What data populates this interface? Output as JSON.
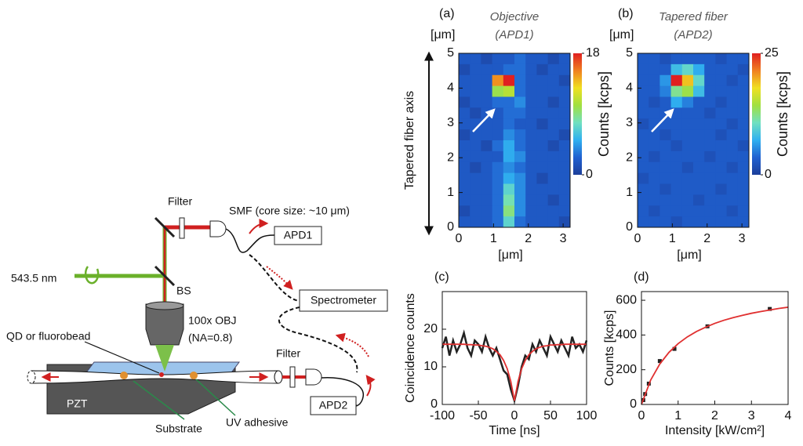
{
  "setup": {
    "laser": "543.5 nm",
    "bs": "BS",
    "filter_top": "Filter",
    "smf": "SMF (core size: ~10 μm)",
    "apd1": "APD1",
    "spectrometer": "Spectrometer",
    "objective": "100x OBJ",
    "na": "(NA=0.8)",
    "emitter": "QD or fluorobead",
    "filter_bottom": "Filter",
    "apd2": "APD2",
    "pzt": "PZT",
    "substrate": "Substrate",
    "adhesive": "UV adhesive"
  },
  "chart_data": [
    {
      "type": "heatmap",
      "label": "(a)",
      "title": [
        "Objective",
        "(APD1)"
      ],
      "yunit": "[μm]",
      "xlabel": "[μm]",
      "ylabel": "Tapered fiber axis",
      "clabel": "Counts [kcps]",
      "xlim": [
        0,
        3.2
      ],
      "xticks": [
        0,
        1,
        2,
        3
      ],
      "ylim": [
        0,
        5
      ],
      "yticks": [
        0,
        1,
        2,
        3,
        4,
        5
      ],
      "clim": [
        0,
        18
      ],
      "cticks": [
        0,
        18
      ],
      "colormap": [
        "#1c3f9a",
        "#2060d0",
        "#30b0f0",
        "#70e0c0",
        "#a0e040",
        "#f0e020",
        "#f08020",
        "#e02020"
      ],
      "z": [
        [
          2,
          2,
          1,
          2,
          2,
          3,
          2,
          2,
          1,
          2
        ],
        [
          1,
          2,
          2,
          2,
          3,
          3,
          2,
          1,
          2,
          2
        ],
        [
          2,
          2,
          2,
          15,
          18,
          3,
          2,
          2,
          2,
          1
        ],
        [
          2,
          2,
          2,
          10,
          11,
          3,
          2,
          2,
          2,
          2
        ],
        [
          1,
          2,
          2,
          3,
          3,
          4,
          2,
          2,
          1,
          2
        ],
        [
          2,
          1,
          2,
          2,
          3,
          3,
          2,
          2,
          2,
          2
        ],
        [
          2,
          2,
          2,
          2,
          3,
          2,
          2,
          1,
          2,
          2
        ],
        [
          1,
          2,
          2,
          2,
          4,
          3,
          2,
          2,
          2,
          1
        ],
        [
          2,
          2,
          1,
          3,
          5,
          3,
          2,
          2,
          1,
          2
        ],
        [
          2,
          2,
          2,
          2,
          5,
          4,
          2,
          2,
          2,
          2
        ],
        [
          2,
          1,
          2,
          3,
          4,
          3,
          2,
          2,
          2,
          2
        ],
        [
          2,
          2,
          2,
          3,
          5,
          4,
          2,
          1,
          2,
          2
        ],
        [
          2,
          2,
          2,
          3,
          7,
          4,
          2,
          2,
          2,
          2
        ],
        [
          2,
          2,
          2,
          3,
          8,
          4,
          2,
          2,
          1,
          2
        ],
        [
          1,
          2,
          2,
          3,
          9,
          4,
          2,
          2,
          2,
          2
        ],
        [
          2,
          2,
          2,
          3,
          7,
          3,
          2,
          2,
          2,
          1
        ]
      ]
    },
    {
      "type": "heatmap",
      "label": "(b)",
      "title": [
        "Tapered fiber",
        "(APD2)"
      ],
      "yunit": "[μm]",
      "xlabel": "[μm]",
      "clabel": "Counts [kcps]",
      "xlim": [
        0,
        3.2
      ],
      "xticks": [
        0,
        1,
        2,
        3
      ],
      "ylim": [
        0,
        5
      ],
      "yticks": [
        0,
        1,
        2,
        3,
        4,
        5
      ],
      "clim": [
        0,
        25
      ],
      "cticks": [
        0,
        25
      ],
      "colormap": [
        "#1c3f9a",
        "#2060d0",
        "#30b0f0",
        "#70e0c0",
        "#a0e040",
        "#f0e020",
        "#f08020",
        "#e02020"
      ],
      "z": [
        [
          3,
          3,
          2,
          3,
          3,
          3,
          3,
          2,
          3,
          3
        ],
        [
          3,
          3,
          3,
          8,
          10,
          7,
          3,
          3,
          3,
          2
        ],
        [
          3,
          3,
          6,
          25,
          19,
          10,
          3,
          3,
          2,
          3
        ],
        [
          3,
          3,
          5,
          12,
          14,
          8,
          3,
          3,
          3,
          3
        ],
        [
          3,
          2,
          3,
          7,
          5,
          3,
          3,
          2,
          3,
          3
        ],
        [
          3,
          3,
          3,
          3,
          3,
          3,
          2,
          3,
          3,
          3
        ],
        [
          2,
          3,
          3,
          3,
          3,
          3,
          3,
          3,
          2,
          3
        ],
        [
          3,
          3,
          2,
          3,
          3,
          3,
          3,
          2,
          3,
          3
        ],
        [
          3,
          3,
          3,
          2,
          3,
          3,
          3,
          3,
          3,
          2
        ],
        [
          3,
          2,
          3,
          3,
          3,
          3,
          2,
          3,
          3,
          3
        ],
        [
          3,
          3,
          3,
          3,
          2,
          3,
          3,
          3,
          2,
          3
        ],
        [
          2,
          3,
          3,
          3,
          3,
          3,
          3,
          3,
          3,
          3
        ],
        [
          3,
          3,
          2,
          3,
          3,
          3,
          3,
          2,
          3,
          3
        ],
        [
          3,
          3,
          3,
          3,
          3,
          2,
          3,
          3,
          3,
          3
        ],
        [
          3,
          2,
          3,
          3,
          3,
          3,
          3,
          3,
          2,
          3
        ],
        [
          3,
          3,
          3,
          2,
          3,
          3,
          3,
          3,
          3,
          3
        ]
      ]
    },
    {
      "type": "line",
      "label": "(c)",
      "xlabel": "Time [ns]",
      "ylabel": "Coincidence counts",
      "xlim": [
        -100,
        100
      ],
      "xticks": [
        -100,
        -50,
        0,
        50,
        100
      ],
      "ylim": [
        0,
        30
      ],
      "yticks": [
        0,
        10,
        20
      ],
      "series": [
        {
          "color": "#222222",
          "style": "line",
          "x": [
            -100,
            -95,
            -90,
            -85,
            -80,
            -75,
            -70,
            -65,
            -60,
            -55,
            -50,
            -45,
            -40,
            -35,
            -30,
            -25,
            -20,
            -15,
            -10,
            -5,
            0,
            5,
            10,
            15,
            20,
            25,
            30,
            35,
            40,
            45,
            50,
            55,
            60,
            65,
            70,
            75,
            80,
            85,
            90,
            95,
            100
          ],
          "values": [
            15,
            18,
            13,
            17,
            14,
            16,
            19,
            15,
            13,
            17,
            16,
            14,
            18,
            15,
            13,
            15,
            12,
            9,
            8,
            4,
            1,
            5,
            10,
            13,
            12,
            16,
            14,
            17,
            15,
            13,
            18,
            16,
            14,
            17,
            15,
            13,
            18,
            15,
            16,
            14,
            17
          ]
        },
        {
          "color": "#e03030",
          "style": "line",
          "x": [
            -100,
            -95,
            -90,
            -85,
            -80,
            -75,
            -70,
            -65,
            -60,
            -55,
            -50,
            -45,
            -40,
            -35,
            -30,
            -25,
            -20,
            -15,
            -10,
            -5,
            0,
            5,
            10,
            15,
            20,
            25,
            30,
            35,
            40,
            45,
            50,
            55,
            60,
            65,
            70,
            75,
            80,
            85,
            90,
            95,
            100
          ],
          "values": [
            16,
            16,
            16,
            16,
            16,
            16,
            16,
            15.9,
            15.9,
            15.8,
            15.8,
            15.6,
            15.5,
            15.2,
            14.8,
            14.1,
            13.2,
            11.7,
            9.5,
            6.1,
            1,
            6.1,
            9.5,
            11.7,
            13.2,
            14.1,
            14.8,
            15.2,
            15.5,
            15.6,
            15.8,
            15.8,
            15.9,
            15.9,
            16,
            16,
            16,
            16,
            16,
            16,
            16
          ]
        }
      ]
    },
    {
      "type": "line",
      "label": "(d)",
      "xlabel": "Intensity [kW/cm²]",
      "ylabel": "Counts [kcps]",
      "xlim": [
        0,
        4
      ],
      "xticks": [
        0,
        1,
        2,
        3,
        4
      ],
      "ylim": [
        0,
        650
      ],
      "yticks": [
        0,
        200,
        400,
        600
      ],
      "series": [
        {
          "color": "#222222",
          "style": "marker",
          "x": [
            0.05,
            0.1,
            0.2,
            0.5,
            0.9,
            1.8,
            3.5
          ],
          "values": [
            25,
            60,
            120,
            250,
            320,
            450,
            550
          ]
        },
        {
          "color": "#e03030",
          "style": "line",
          "x": [
            0,
            0.25,
            0.5,
            0.75,
            1,
            1.25,
            1.5,
            1.75,
            2,
            2.25,
            2.5,
            2.75,
            3,
            3.25,
            3.5,
            3.75,
            4
          ],
          "values": [
            0,
            140,
            233,
            300,
            350,
            389,
            420,
            445,
            467,
            485,
            500,
            513,
            525,
            535,
            544,
            553,
            560
          ]
        }
      ]
    }
  ]
}
